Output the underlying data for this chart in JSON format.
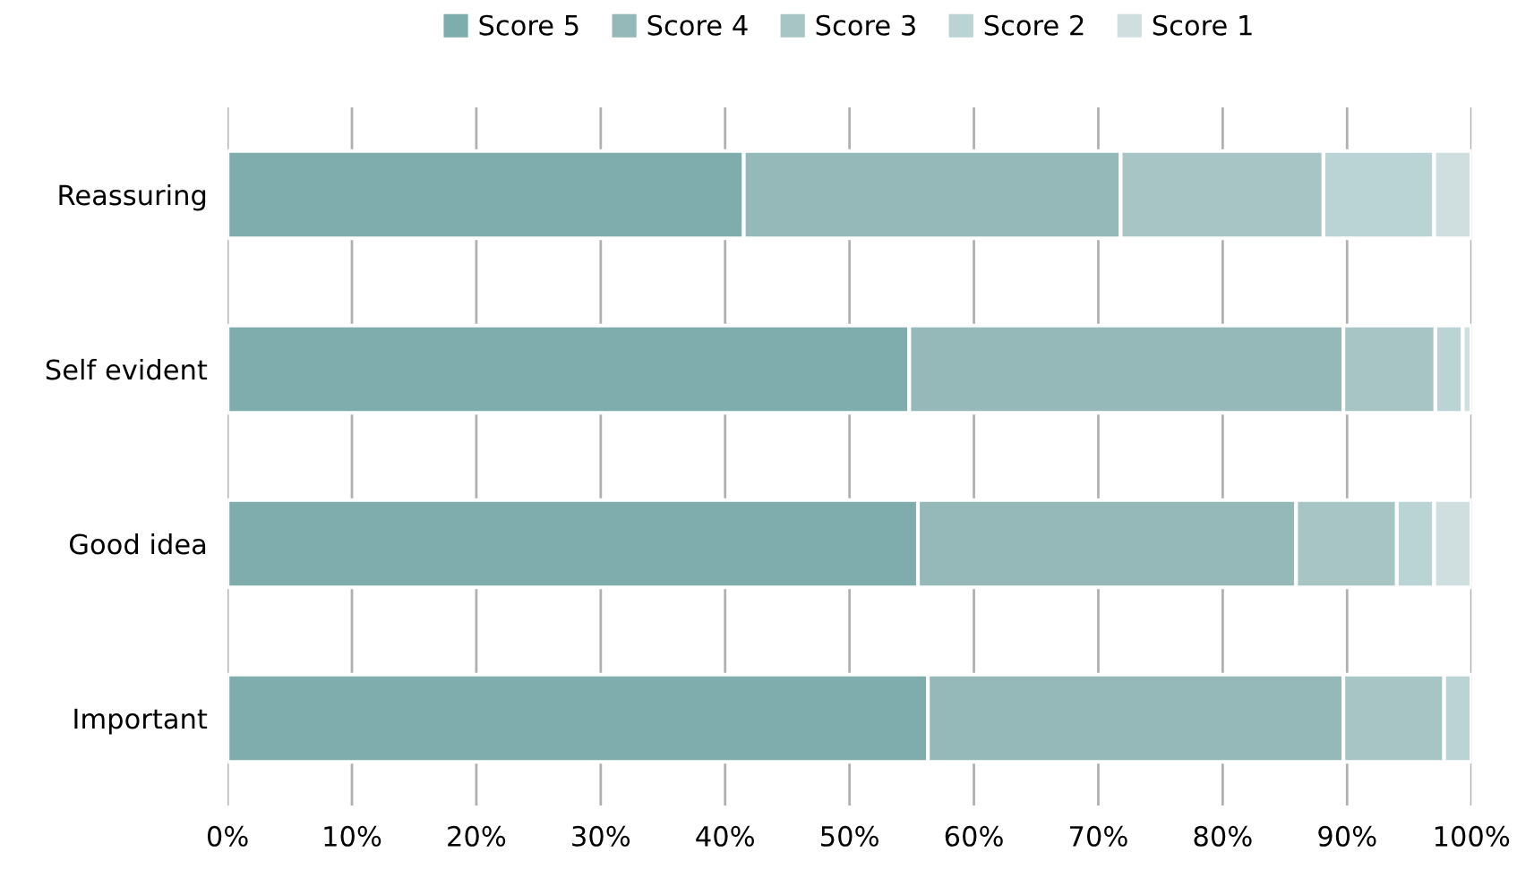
{
  "chart_data": {
    "type": "bar",
    "orientation": "horizontal",
    "stacked": true,
    "categories": [
      "Reassuring",
      "Self evident",
      "Good idea",
      "Important"
    ],
    "series": [
      {
        "name": "Score 5",
        "color": "#7fadad",
        "values": [
          41.5,
          54.8,
          55.5,
          56.3
        ]
      },
      {
        "name": "Score 4",
        "color": "#95b8b8",
        "values": [
          30.3,
          34.9,
          30.4,
          33.4
        ]
      },
      {
        "name": "Score 3",
        "color": "#a8c5c6",
        "values": [
          16.3,
          7.4,
          8.1,
          8.1
        ]
      },
      {
        "name": "Score 2",
        "color": "#bad3d4",
        "values": [
          8.9,
          2.2,
          3.0,
          2.2
        ]
      },
      {
        "name": "Score 1",
        "color": "#cfdfdf",
        "values": [
          3.0,
          0.7,
          3.0,
          null
        ]
      }
    ],
    "xlim": [
      0,
      100
    ],
    "xticks": [
      {
        "value": 0,
        "label": "0%"
      },
      {
        "value": 10,
        "label": "10%"
      },
      {
        "value": 20,
        "label": "20%"
      },
      {
        "value": 30,
        "label": "30%"
      },
      {
        "value": 40,
        "label": "40%"
      },
      {
        "value": 50,
        "label": "50%"
      },
      {
        "value": 60,
        "label": "60%"
      },
      {
        "value": 70,
        "label": "70%"
      },
      {
        "value": 80,
        "label": "80%"
      },
      {
        "value": 90,
        "label": "90%"
      },
      {
        "value": 100,
        "label": "100%"
      }
    ],
    "grid": "x",
    "legend": "top"
  }
}
